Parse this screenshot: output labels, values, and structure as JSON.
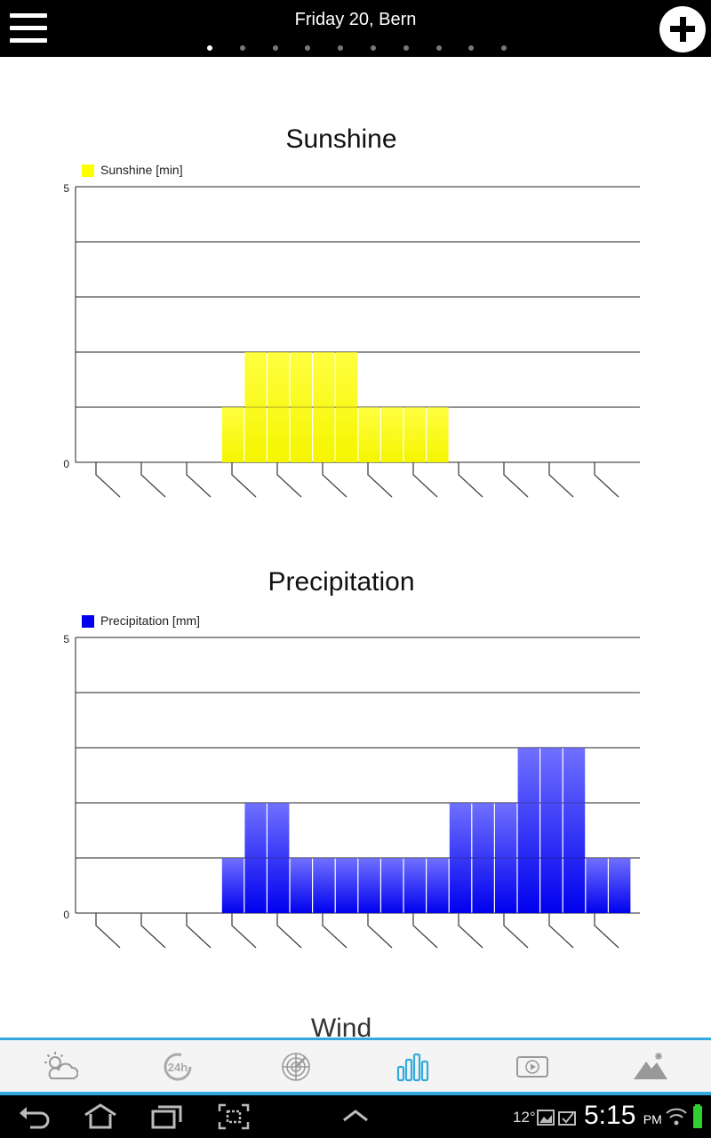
{
  "header": {
    "title": "Friday 20, Bern",
    "page_dots": 10,
    "active_dot": 0
  },
  "charts": [
    {
      "title": "Sunshine",
      "legend": "Sunshine [min]",
      "color_top": "#ffff40",
      "color_bottom": "#f5f500",
      "swatch": "#ffff00"
    },
    {
      "title": "Precipitation",
      "legend": "Precipitation [mm]",
      "color_top": "#7070ff",
      "color_bottom": "#0000ee",
      "swatch": "#0000ee"
    }
  ],
  "chart_data": [
    {
      "type": "bar",
      "title": "Sunshine",
      "series": [
        {
          "name": "Sunshine [min]",
          "values": [
            0,
            0,
            0,
            0,
            0,
            0,
            0,
            1,
            2,
            2,
            2,
            2,
            2,
            1,
            1,
            1,
            1,
            0,
            0,
            0,
            0,
            0,
            0,
            0,
            0
          ]
        }
      ],
      "ylim": [
        0,
        5
      ],
      "y_tick_labels": [
        "0",
        "5"
      ],
      "grid": true,
      "legend": "top-left"
    },
    {
      "type": "bar",
      "title": "Precipitation",
      "series": [
        {
          "name": "Precipitation [mm]",
          "values": [
            0,
            0,
            0,
            0,
            0,
            0,
            0,
            1,
            2,
            2,
            1,
            1,
            1,
            1,
            1,
            1,
            1,
            2,
            2,
            2,
            3,
            3,
            3,
            1,
            1
          ]
        }
      ],
      "ylim": [
        0,
        5
      ],
      "y_tick_labels": [
        "0",
        "5"
      ],
      "grid": true,
      "legend": "top-left"
    }
  ],
  "next_section": {
    "title": "Wind"
  },
  "tabbar": {
    "tabs": [
      {
        "icon": "weather-icon",
        "active": false
      },
      {
        "icon": "24h-icon",
        "active": false
      },
      {
        "icon": "radar-icon",
        "active": false
      },
      {
        "icon": "bar-chart-icon",
        "active": true
      },
      {
        "icon": "video-icon",
        "active": false
      },
      {
        "icon": "mountain-snow-icon",
        "active": false
      }
    ],
    "active_color": "#33aadd",
    "inactive_color": "#999999"
  },
  "system_bar": {
    "temperature": "12°",
    "time": "5:15",
    "ampm": "PM"
  }
}
